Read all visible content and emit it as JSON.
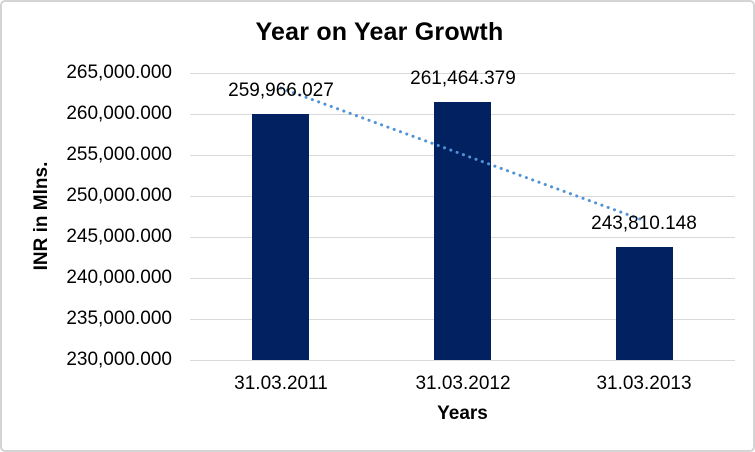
{
  "chart_data": {
    "type": "bar",
    "title": "Year on Year Growth",
    "categories": [
      "31.03.2011",
      "31.03.2012",
      "31.03.2013"
    ],
    "values": [
      259966.027,
      261464.379,
      243810.148
    ],
    "value_labels": [
      "259,966.027",
      "261,464.379",
      "243,810.148"
    ],
    "xlabel": "Years",
    "ylabel": "INR in Mlns.",
    "ylim": [
      230000,
      265000
    ],
    "ytick_step": 5000,
    "ytick_labels": [
      "265,000.000",
      "260,000.000",
      "255,000.000",
      "250,000.000",
      "245,000.000",
      "240,000.000",
      "235,000.000",
      "230,000.000"
    ],
    "grid": true,
    "legend": false,
    "bar_color": "#022161",
    "gridline_color": "#d9d9d9",
    "text_color": "#000000",
    "trendline": {
      "type": "linear",
      "style": "dotted",
      "color": "#4f93d6"
    }
  }
}
